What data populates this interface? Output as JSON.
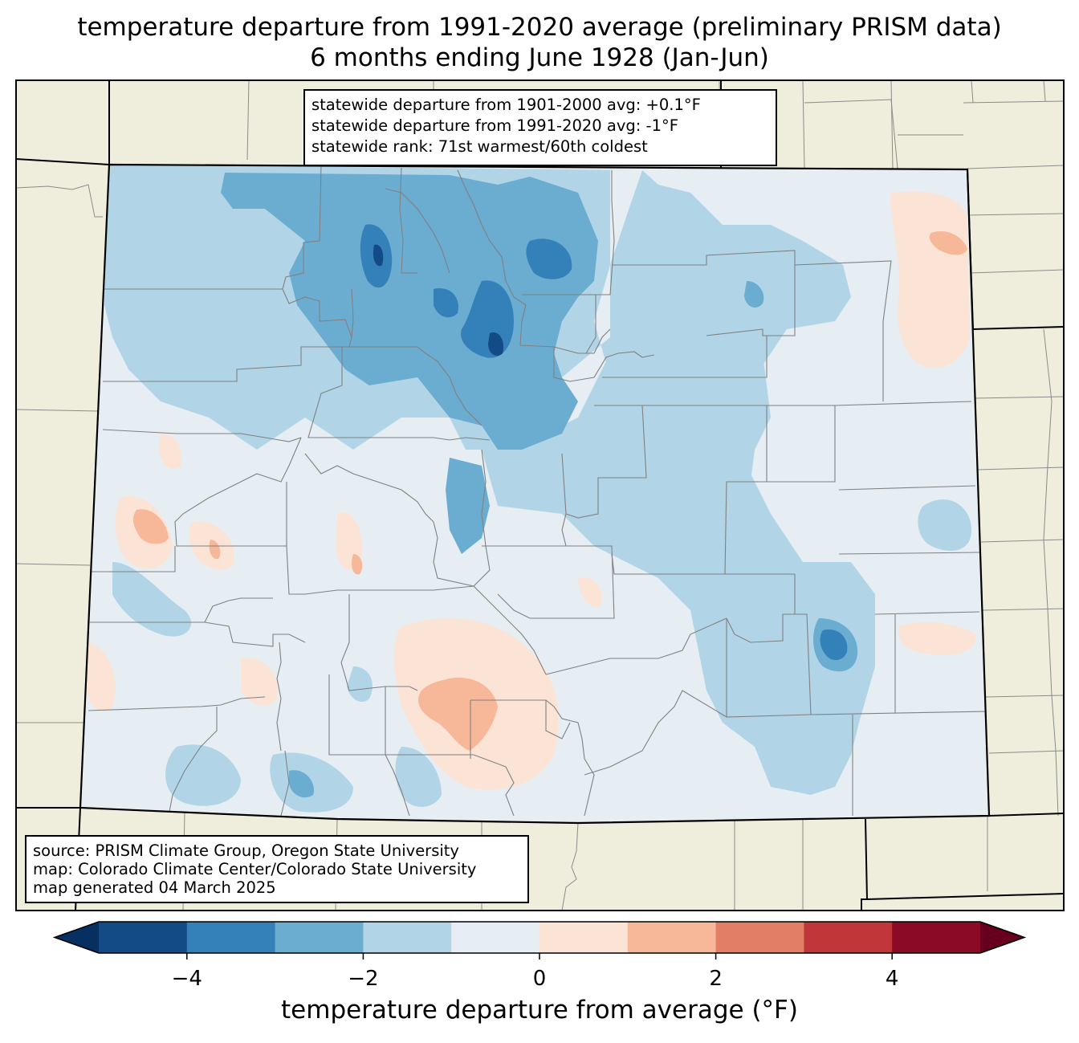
{
  "title": {
    "line1": "temperature departure from 1991-2020 average (preliminary PRISM data)",
    "line2": "6 months ending June 1928 (Jan-Jun)"
  },
  "stats_box": {
    "line1": "statewide departure from 1901-2000 avg: +0.1°F",
    "line2": "statewide departure from 1991-2020 avg: -1°F",
    "line3": "statewide rank: 71st warmest/60th coldest"
  },
  "source_box": {
    "line1": "source: PRISM Climate Group, Oregon State University",
    "line2": "map: Colorado Climate Center/Colorado State University",
    "line3": "map generated 04 March 2025"
  },
  "colorbar": {
    "label": "temperature departure from average (°F)",
    "ticks": [
      "−4",
      "−2",
      "0",
      "2",
      "4"
    ],
    "tick_values": [
      -4,
      -2,
      0,
      2,
      4
    ],
    "range": [
      -5,
      5
    ],
    "bin_colors": [
      "#134b87",
      "#3480b9",
      "#6bacd1",
      "#b1d5e7",
      "#e6eef4",
      "#fbe4d6",
      "#f7b799",
      "#e27e65",
      "#c13639",
      "#8b0a26"
    ],
    "under_color": "#053061",
    "over_color": "#67001f"
  },
  "colors": {
    "background_land": "#efeedc",
    "state_border": "#000000",
    "county_border": "#808080"
  }
}
